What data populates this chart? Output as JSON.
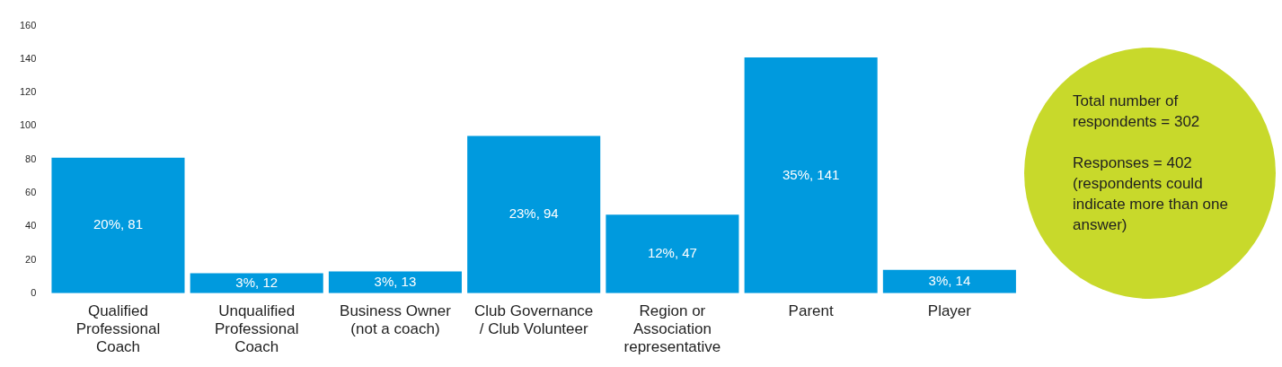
{
  "chart_data": {
    "type": "bar",
    "categories": [
      "Qualified Professional Coach",
      "Unqualified Professional Coach",
      "Business Owner (not a coach)",
      "Club Governance / Club Volunteer",
      "Region or Association representative",
      "Parent",
      "Player"
    ],
    "values": [
      81,
      12,
      13,
      94,
      47,
      141,
      14
    ],
    "value_labels": [
      "20%, 81",
      "3%, 12",
      "3%, 13",
      "23%, 94",
      "12%, 47",
      "35%, 141",
      "3%, 14"
    ],
    "color": "#009ade",
    "ylim": [
      0,
      160
    ],
    "yticks": [
      0,
      20,
      40,
      60,
      80,
      100,
      120,
      140,
      160
    ],
    "grid": false,
    "legend": false,
    "annotations": [
      "Total number of respondents = 302",
      "Responses = 402 (respondents could indicate more than one answer)"
    ]
  }
}
